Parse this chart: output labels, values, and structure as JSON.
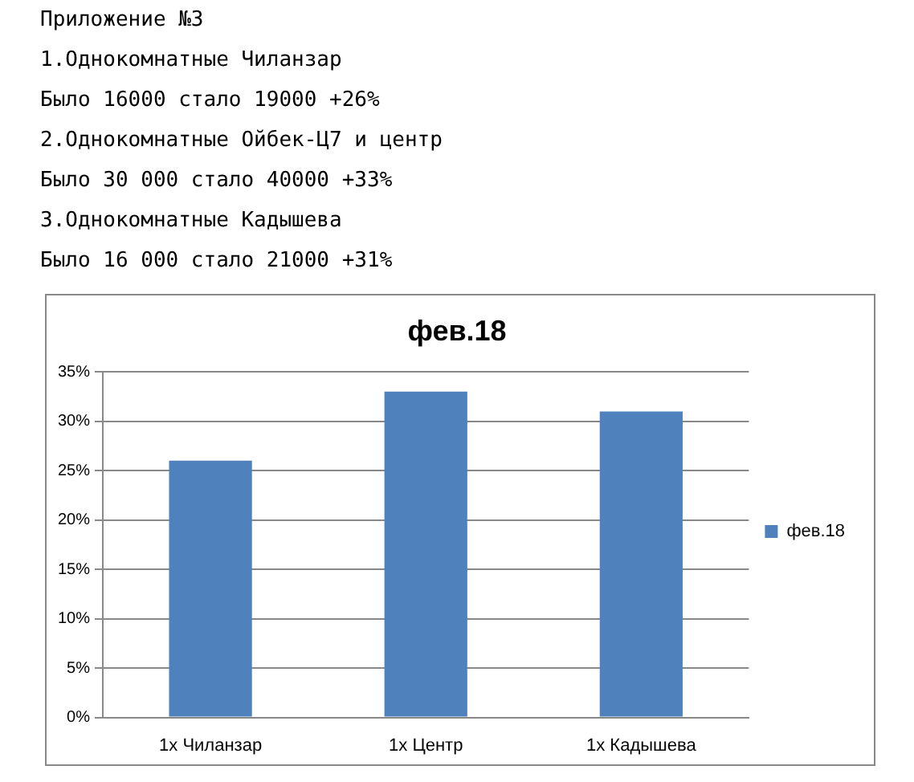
{
  "chart_data": {
    "type": "bar",
    "title": "фев.18",
    "annotations": [
      "Приложение №3",
      "1.Однокомнатные Чиланзар",
      "Было 16000 стало 19000 +26%",
      "2.Однокомнатные Ойбек-Ц7 и центр",
      "Было 30 000 стало 40000 +33%",
      "3.Однокомнатные Кадышева",
      "Было 16 000 стало 21000 +31%"
    ],
    "categories": [
      "1х Чиланзар",
      "1х Центр",
      "1х Кадышева"
    ],
    "series": [
      {
        "name": "фев.18",
        "color": "#4f81bd",
        "values": [
          26,
          33,
          31
        ]
      }
    ],
    "ylim": [
      0,
      35
    ],
    "yticks": [
      {
        "value": 0,
        "label": "0%"
      },
      {
        "value": 5,
        "label": "5%"
      },
      {
        "value": 10,
        "label": "10%"
      },
      {
        "value": 15,
        "label": "15%"
      },
      {
        "value": 20,
        "label": "20%"
      },
      {
        "value": 25,
        "label": "25%"
      },
      {
        "value": 30,
        "label": "30%"
      },
      {
        "value": 35,
        "label": "35%"
      }
    ],
    "grid": "y",
    "legend": "right"
  }
}
